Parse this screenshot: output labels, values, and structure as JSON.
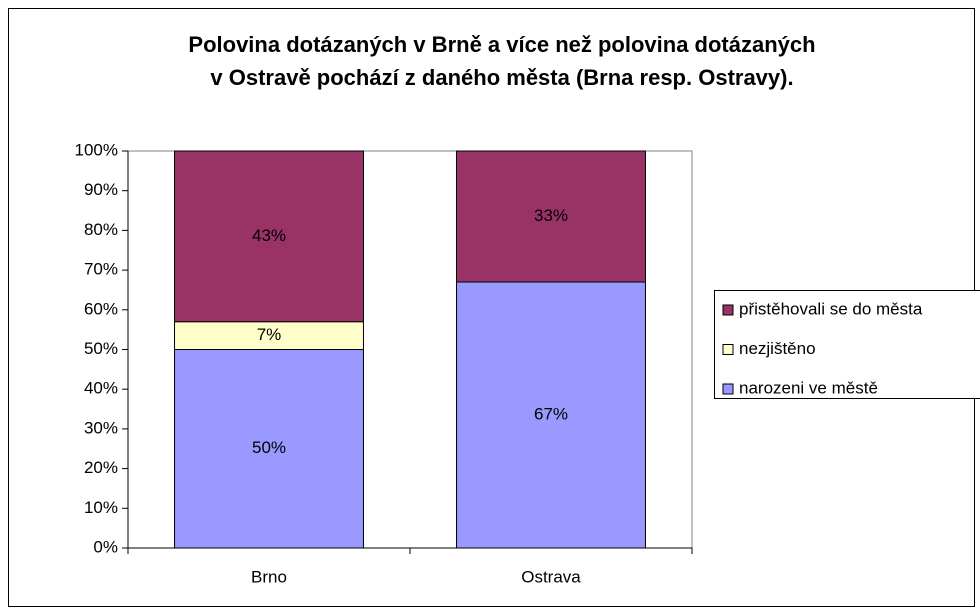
{
  "chart_data": {
    "type": "stacked_bar",
    "title": [
      "Polovina dotázaných v Brně a více než polovina dotázaných",
      "v Ostravě pochází z daného města (Brna resp. Ostravy)."
    ],
    "categories": [
      "Brno",
      "Ostrava"
    ],
    "series": [
      {
        "name": "narozeni ve městě",
        "color": "#9999ff",
        "values": [
          50,
          67
        ],
        "value_labels": [
          "50%",
          "67%"
        ]
      },
      {
        "name": "nezjištěno",
        "color": "#ffffcc",
        "values": [
          7,
          null
        ],
        "value_labels": [
          "7%",
          null
        ]
      },
      {
        "name": "přistěhovali se do města",
        "color": "#993366",
        "values": [
          43,
          33
        ],
        "value_labels": [
          "43%",
          "33%"
        ]
      }
    ],
    "ylim": [
      0,
      100
    ],
    "yticks": [
      {
        "value": 0,
        "label": "0%"
      },
      {
        "value": 10,
        "label": "10%"
      },
      {
        "value": 20,
        "label": "20%"
      },
      {
        "value": 30,
        "label": "30%"
      },
      {
        "value": 40,
        "label": "40%"
      },
      {
        "value": 50,
        "label": "50%"
      },
      {
        "value": 60,
        "label": "60%"
      },
      {
        "value": 70,
        "label": "70%"
      },
      {
        "value": 80,
        "label": "80%"
      },
      {
        "value": 90,
        "label": "90%"
      },
      {
        "value": 100,
        "label": "100%"
      }
    ],
    "legend": "right"
  }
}
